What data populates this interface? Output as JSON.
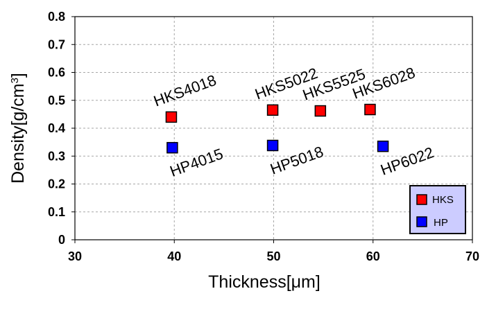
{
  "chart_data": {
    "type": "scatter",
    "title": "",
    "xlabel": "Thickness[μm]",
    "ylabel": "Density[g/cm3]",
    "xlim": [
      30,
      70
    ],
    "ylim": [
      0,
      0.8
    ],
    "x_ticks": [
      "30",
      "40",
      "50",
      "60",
      "70"
    ],
    "y_ticks": [
      "0",
      "0.1",
      "0.2",
      "0.3",
      "0.4",
      "0.5",
      "0.6",
      "0.7",
      "0.8"
    ],
    "grid": true,
    "legend_position": "bottom-right",
    "series": [
      {
        "name": "HKS",
        "color": "#ff0000",
        "points": [
          {
            "label": "HKS4018",
            "x": 39.7,
            "y": 0.44
          },
          {
            "label": "HKS5022",
            "x": 49.9,
            "y": 0.465
          },
          {
            "label": "HKS5525",
            "x": 54.7,
            "y": 0.462
          },
          {
            "label": "HKS6028",
            "x": 59.7,
            "y": 0.467
          }
        ]
      },
      {
        "name": "HP",
        "color": "#0000ff",
        "points": [
          {
            "label": "HP4015",
            "x": 39.8,
            "y": 0.33
          },
          {
            "label": "HP5018",
            "x": 49.9,
            "y": 0.338
          },
          {
            "label": "HP6022",
            "x": 61.0,
            "y": 0.335
          }
        ]
      }
    ],
    "legend_background": "#ccccff"
  }
}
